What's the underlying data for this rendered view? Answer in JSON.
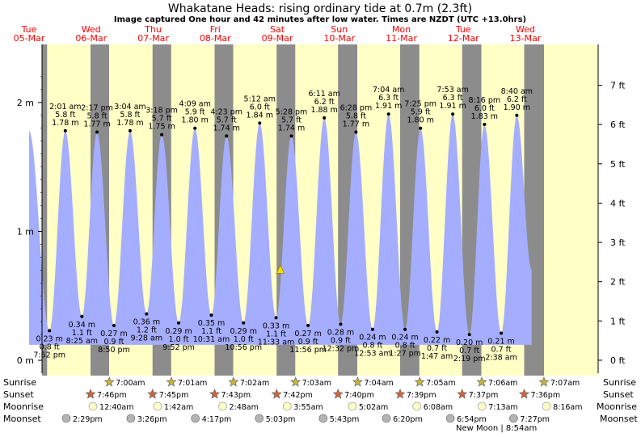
{
  "header": {
    "title": "Whakatane Heads: rising  ordinary tide at 0.7m (2.3ft)",
    "subtitle": "Image captured One hour and 42 minutes after low water. Times are NZDT (UTC +13.0hrs)"
  },
  "colors": {
    "day": "#ffffc6",
    "night": "#8c8c8c",
    "tide": "#a5adff",
    "date_label": "#ff0000",
    "sun_star": "#c8b43c",
    "sunset_star": "#d2643c",
    "moonrise": "#ffffc8",
    "moonset": "#b4b4b4"
  },
  "chart_data": {
    "type": "area",
    "xlim": [
      0,
      9.33
    ],
    "ylim_m": [
      -0.1,
      2.45
    ],
    "ylim_ft": [
      -0.33,
      8.04
    ],
    "y_left_ticks": [
      {
        "v": 0,
        "label": "0 m"
      },
      {
        "v": 1,
        "label": "1 m"
      },
      {
        "v": 2,
        "label": "2 m"
      }
    ],
    "y_right_ticks": [
      {
        "v": 0,
        "label": "0 ft"
      },
      {
        "v": 1,
        "label": "1 ft"
      },
      {
        "v": 2,
        "label": "2 ft"
      },
      {
        "v": 3,
        "label": "3 ft"
      },
      {
        "v": 4,
        "label": "4 ft"
      },
      {
        "v": 5,
        "label": "5 ft"
      },
      {
        "v": 6,
        "label": "6 ft"
      },
      {
        "v": 7,
        "label": "7 ft"
      }
    ],
    "days": [
      {
        "d": 0,
        "name": "Tue",
        "date": "05-Mar"
      },
      {
        "d": 1,
        "name": "Wed",
        "date": "06-Mar"
      },
      {
        "d": 2,
        "name": "Thu",
        "date": "07-Mar"
      },
      {
        "d": 3,
        "name": "Fri",
        "date": "08-Mar"
      },
      {
        "d": 4,
        "name": "Sat",
        "date": "09-Mar"
      },
      {
        "d": 5,
        "name": "Sun",
        "date": "10-Mar"
      },
      {
        "d": 6,
        "name": "Mon",
        "date": "11-Mar"
      },
      {
        "d": 7,
        "name": "Tue",
        "date": "12-Mar"
      },
      {
        "d": 8,
        "name": "Wed",
        "date": "13-Mar"
      }
    ],
    "nights": [
      [
        -0.3,
        0.29
      ],
      [
        0.99,
        1.29
      ],
      [
        1.99,
        2.29
      ],
      [
        2.99,
        3.29
      ],
      [
        3.99,
        4.29
      ],
      [
        4.98,
        5.29
      ],
      [
        5.98,
        6.29
      ],
      [
        6.98,
        7.29
      ],
      [
        7.98,
        8.3
      ]
    ],
    "tides": [
      {
        "t": 0.0,
        "h": 1.78,
        "type": "high",
        "time": "",
        "ft": "",
        "m": ""
      },
      {
        "t": 0.328,
        "h": 0.23,
        "type": "low",
        "time": "7:52 pm",
        "ft": "0.8 ft",
        "m": "0.23 m"
      },
      {
        "t": 0.584,
        "h": 1.78,
        "type": "high",
        "time": "2:01 am",
        "ft": "5.8 ft",
        "m": "1.78 m"
      },
      {
        "t": 0.851,
        "h": 0.34,
        "type": "low",
        "time": "8:25 am",
        "ft": "1.1 ft",
        "m": "0.34 m"
      },
      {
        "t": 1.095,
        "h": 1.77,
        "type": "high",
        "time": "2:17 pm",
        "ft": "5.8 ft",
        "m": "1.77 m"
      },
      {
        "t": 1.368,
        "h": 0.27,
        "type": "low",
        "time": "8:50 pm",
        "ft": "0.9 ft",
        "m": "0.27 m"
      },
      {
        "t": 1.628,
        "h": 1.78,
        "type": "high",
        "time": "3:04 am",
        "ft": "5.8 ft",
        "m": "1.78 m"
      },
      {
        "t": 1.894,
        "h": 0.36,
        "type": "low",
        "time": "9:28 am",
        "ft": "1.2 ft",
        "m": "0.36 m"
      },
      {
        "t": 2.138,
        "h": 1.75,
        "type": "high",
        "time": "3:18 pm",
        "ft": "5.7 ft",
        "m": "1.75 m"
      },
      {
        "t": 2.411,
        "h": 0.29,
        "type": "low",
        "time": "9:52 pm",
        "ft": "1.0 ft",
        "m": "0.29 m"
      },
      {
        "t": 2.673,
        "h": 1.8,
        "type": "high",
        "time": "4:09 am",
        "ft": "5.9 ft",
        "m": "1.80 m"
      },
      {
        "t": 2.938,
        "h": 0.35,
        "type": "low",
        "time": "10:31 am",
        "ft": "1.1 ft",
        "m": "0.35 m"
      },
      {
        "t": 3.182,
        "h": 1.74,
        "type": "high",
        "time": "4:23 pm",
        "ft": "5.7 ft",
        "m": "1.74 m"
      },
      {
        "t": 3.456,
        "h": 0.29,
        "type": "low",
        "time": "10:56 pm",
        "ft": "1.0 ft",
        "m": "0.29 m"
      },
      {
        "t": 3.717,
        "h": 1.84,
        "type": "high",
        "time": "5:12 am",
        "ft": "6.0 ft",
        "m": "1.84 m"
      },
      {
        "t": 3.981,
        "h": 0.33,
        "type": "low",
        "time": "11:33 am",
        "ft": "1.1 ft",
        "m": "0.33 m"
      },
      {
        "t": 4.228,
        "h": 1.74,
        "type": "high",
        "time": "5:28 pm",
        "ft": "5.7 ft",
        "m": "1.74 m"
      },
      {
        "t": 4.497,
        "h": 0.27,
        "type": "low",
        "time": "11:56 pm",
        "ft": "0.9 ft",
        "m": "0.27 m"
      },
      {
        "t": 4.758,
        "h": 1.88,
        "type": "high",
        "time": "6:11 am",
        "ft": "6.2 ft",
        "m": "1.88 m"
      },
      {
        "t": 5.022,
        "h": 0.28,
        "type": "low",
        "time": "12:32 pm",
        "ft": "0.9 ft",
        "m": "0.28 m"
      },
      {
        "t": 5.269,
        "h": 1.77,
        "type": "high",
        "time": "6:28 pm",
        "ft": "5.8 ft",
        "m": "1.77 m"
      },
      {
        "t": 5.537,
        "h": 0.24,
        "type": "low",
        "time": "12:53 am",
        "ft": "0.8 ft",
        "m": "0.24 m"
      },
      {
        "t": 5.794,
        "h": 1.91,
        "type": "high",
        "time": "7:04 am",
        "ft": "6.3 ft",
        "m": "1.91 m"
      },
      {
        "t": 6.06,
        "h": 0.24,
        "type": "low",
        "time": "1:27 pm",
        "ft": "0.8 ft",
        "m": "0.24 m"
      },
      {
        "t": 6.309,
        "h": 1.8,
        "type": "high",
        "time": "7:25 pm",
        "ft": "5.9 ft",
        "m": "1.80 m"
      },
      {
        "t": 6.574,
        "h": 0.22,
        "type": "low",
        "time": "1:47 am",
        "ft": "0.7 ft",
        "m": "0.22 m"
      },
      {
        "t": 6.829,
        "h": 1.91,
        "type": "high",
        "time": "7:53 am",
        "ft": "6.3 ft",
        "m": "1.91 m"
      },
      {
        "t": 7.097,
        "h": 0.2,
        "type": "low",
        "time": "2:19 pm",
        "ft": "0.7 ft",
        "m": "0.20 m"
      },
      {
        "t": 7.34,
        "h": 1.83,
        "type": "high",
        "time": "8:16 pm",
        "ft": "6.0 ft",
        "m": "1.83 m"
      },
      {
        "t": 7.61,
        "h": 0.21,
        "type": "low",
        "time": "2:38 am",
        "ft": "0.7 ft",
        "m": "0.21 m"
      },
      {
        "t": 7.861,
        "h": 1.9,
        "type": "high",
        "time": "8:40 am",
        "ft": "6.2 ft",
        "m": "1.90 m"
      },
      {
        "t": 8.1,
        "h": 0.7,
        "type": "",
        "time": "",
        "ft": "",
        "m": ""
      }
    ],
    "tide_plot_range": [
      0.0,
      8.1
    ],
    "current": {
      "t": 4.05,
      "h": 0.7
    },
    "astro": {
      "sunrise_label": "Sunrise",
      "sunset_label": "Sunset",
      "moonrise_label": "Moonrise",
      "moonset_label": "Moonset",
      "new_moon": "New Moon | 8:54am",
      "sunrise": [
        {
          "t": 1.292,
          "label": "7:00am"
        },
        {
          "t": 2.293,
          "label": "7:01am"
        },
        {
          "t": 3.294,
          "label": "7:02am"
        },
        {
          "t": 4.295,
          "label": "7:03am"
        },
        {
          "t": 5.295,
          "label": "7:04am"
        },
        {
          "t": 6.296,
          "label": "7:05am"
        },
        {
          "t": 7.297,
          "label": "7:06am"
        },
        {
          "t": 8.298,
          "label": "7:07am"
        }
      ],
      "sunset": [
        {
          "t": 0.99,
          "label": "7:46pm"
        },
        {
          "t": 1.99,
          "label": "7:45pm"
        },
        {
          "t": 2.99,
          "label": "7:43pm"
        },
        {
          "t": 3.99,
          "label": "7:42pm"
        },
        {
          "t": 4.98,
          "label": "7:40pm"
        },
        {
          "t": 5.98,
          "label": "7:39pm"
        },
        {
          "t": 6.98,
          "label": "7:37pm"
        },
        {
          "t": 7.98,
          "label": "7:36pm"
        }
      ],
      "moonrise": [
        {
          "t": 1.03,
          "label": "12:40am"
        },
        {
          "t": 2.07,
          "label": "1:42am"
        },
        {
          "t": 3.12,
          "label": "2:48am"
        },
        {
          "t": 4.16,
          "label": "3:55am"
        },
        {
          "t": 5.21,
          "label": "5:02am"
        },
        {
          "t": 6.25,
          "label": "6:08am"
        },
        {
          "t": 7.3,
          "label": "7:13am"
        },
        {
          "t": 8.34,
          "label": "8:16am"
        }
      ],
      "moonset": [
        {
          "t": 0.6,
          "label": "2:29pm"
        },
        {
          "t": 1.64,
          "label": "3:26pm"
        },
        {
          "t": 2.68,
          "label": "4:17pm"
        },
        {
          "t": 3.71,
          "label": "5:03pm"
        },
        {
          "t": 4.74,
          "label": "5:43pm"
        },
        {
          "t": 5.76,
          "label": "6:20pm"
        },
        {
          "t": 6.79,
          "label": "6:54pm"
        },
        {
          "t": 7.81,
          "label": "7:27pm"
        }
      ]
    }
  }
}
